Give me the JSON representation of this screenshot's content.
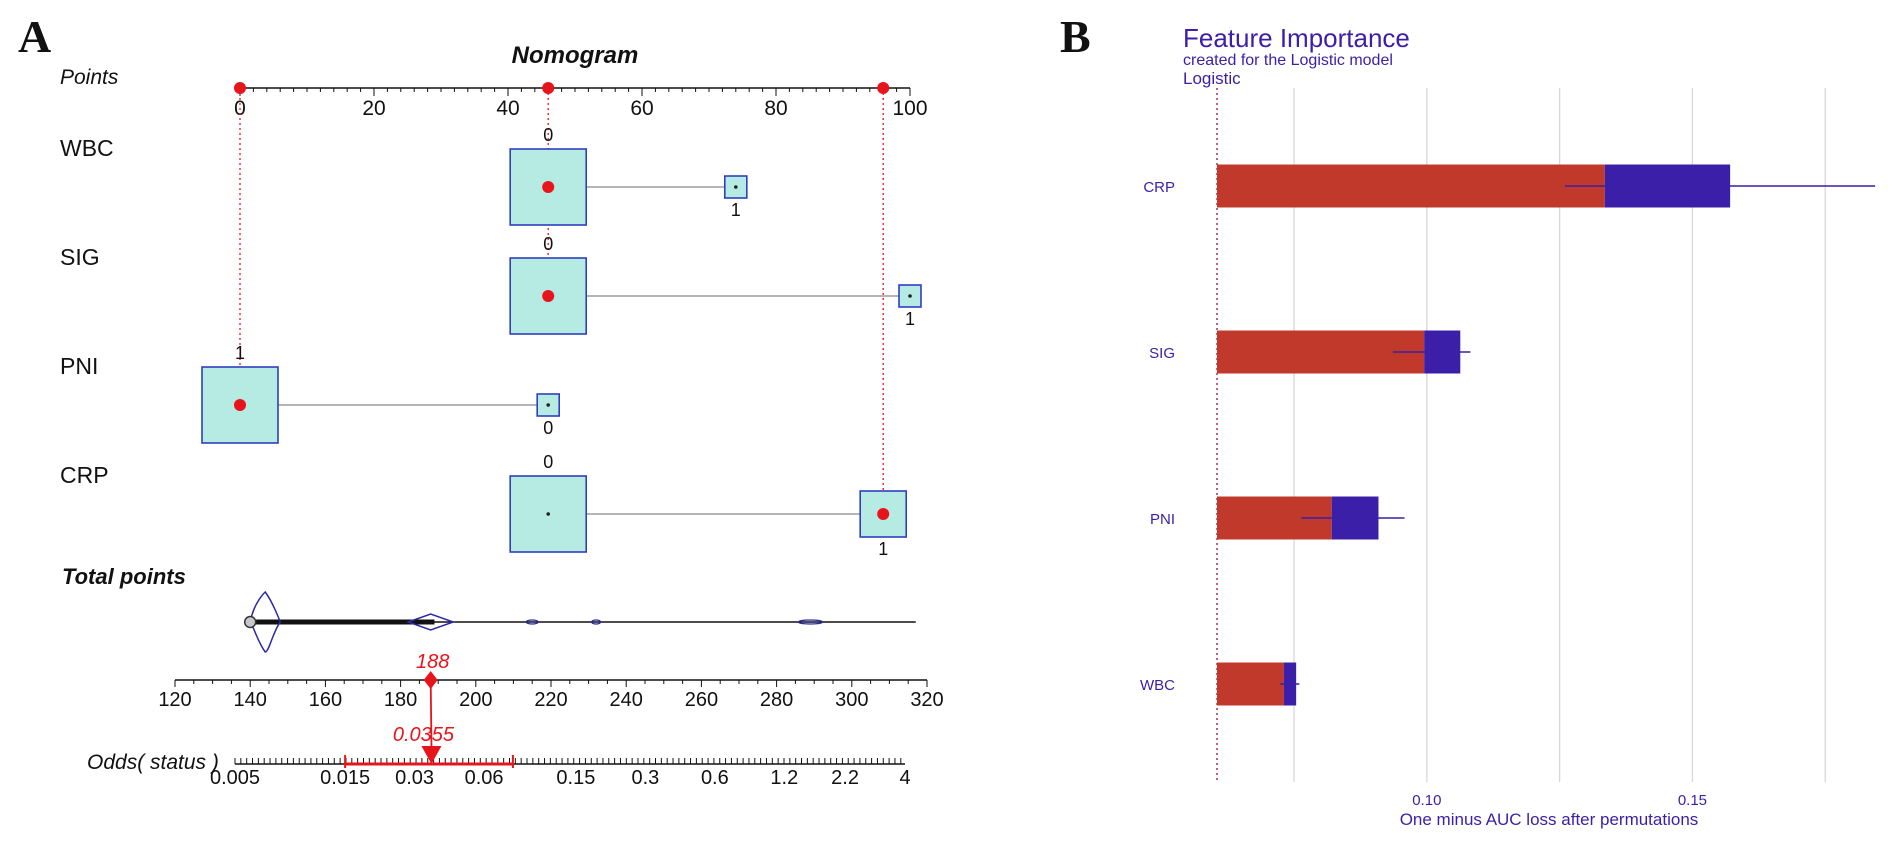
{
  "panel_a": {
    "letter": "A",
    "chart_data": {
      "type": "nomogram",
      "title": "Nomogram",
      "points_label": "Points",
      "points_ticks": [
        0,
        20,
        40,
        60,
        80,
        100
      ],
      "variables": [
        {
          "name": "WBC",
          "levels": [
            {
              "label": "0",
              "points": 46,
              "weight": "large",
              "selected": true
            },
            {
              "label": "1",
              "points": 74,
              "weight": "small",
              "selected": false
            }
          ]
        },
        {
          "name": "SIG",
          "levels": [
            {
              "label": "0",
              "points": 46,
              "weight": "large",
              "selected": true
            },
            {
              "label": "1",
              "points": 100,
              "weight": "small",
              "selected": false
            }
          ]
        },
        {
          "name": "PNI",
          "levels": [
            {
              "label": "1",
              "points": 0,
              "weight": "large",
              "selected": true
            },
            {
              "label": "0",
              "points": 46,
              "weight": "small",
              "selected": false
            }
          ]
        },
        {
          "name": "CRP",
          "levels": [
            {
              "label": "0",
              "points": 46,
              "weight": "large",
              "selected": false
            },
            {
              "label": "1",
              "points": 96,
              "weight": "medium",
              "selected": true
            }
          ]
        }
      ],
      "total_points_label": "Total points",
      "total_points_ticks": [
        120,
        140,
        160,
        180,
        200,
        220,
        240,
        260,
        280,
        300,
        320
      ],
      "total_points_range": [
        120,
        320
      ],
      "total_points_value": 188,
      "total_points_value_label": "188",
      "odds_label": "Odds( status )",
      "odds_ticks": [
        "0.005",
        "0.015",
        "0.03",
        "0.06",
        "0.15",
        "0.3",
        "0.6",
        "1.2",
        "2.2",
        "4"
      ],
      "odds_value": 0.0355,
      "odds_value_label": "0.0355",
      "odds_ci": [
        0.015,
        0.08
      ],
      "highlight_color": "#e8141b",
      "box_fill": "#b6ebe4",
      "box_stroke": "#2e3fbf"
    }
  },
  "panel_b": {
    "letter": "B",
    "chart_data": {
      "type": "bar",
      "title": "Feature Importance",
      "subtitle": "created for the Logistic model",
      "model_label": "Logistic",
      "xlabel": "One minus AUC loss after permutations",
      "x_ticks": [
        0.1,
        0.15
      ],
      "x_tick_labels": [
        "0.10",
        "0.15"
      ],
      "xlim": [
        0.0605,
        0.1855
      ],
      "baseline": 0.0605,
      "categories": [
        "CRP",
        "SIG",
        "PNI",
        "WBC"
      ],
      "series": [
        {
          "name": "mean",
          "values": [
            0.1335,
            0.0995,
            0.0821,
            0.0731
          ],
          "color": "#c0392b"
        },
        {
          "name": "box_q1",
          "values": [
            0.1335,
            0.0995,
            0.0821,
            0.0731
          ],
          "color": "#3b1fa8"
        },
        {
          "name": "box_q3",
          "values": [
            0.1571,
            0.1063,
            0.0909,
            0.0754
          ],
          "color": "#3b1fa8"
        }
      ],
      "whiskers": [
        {
          "low": 0.126,
          "high": 0.1844
        },
        {
          "low": 0.0936,
          "high": 0.1082
        },
        {
          "low": 0.0764,
          "high": 0.0958
        },
        {
          "low": 0.0724,
          "high": 0.076
        }
      ],
      "bar_color": "#c0392b",
      "box_color": "#3b1fa8",
      "text_color": "#3b1fa8"
    }
  }
}
